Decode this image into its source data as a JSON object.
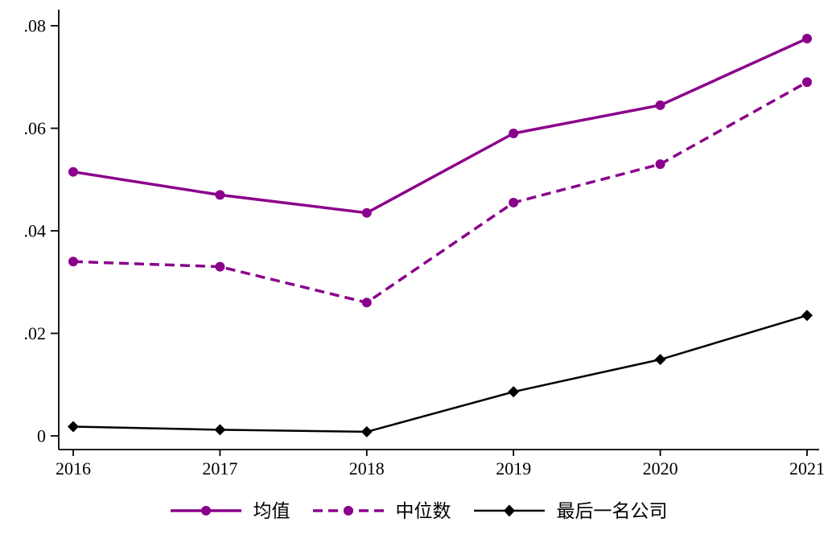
{
  "chart_data": {
    "type": "line",
    "title": "",
    "xlabel": "",
    "ylabel": "",
    "x": [
      2016,
      2017,
      2018,
      2019,
      2020,
      2021
    ],
    "xtick_labels": [
      "2016",
      "2017",
      "2018",
      "2019",
      "2020",
      "2021"
    ],
    "ylim": [
      0,
      0.08
    ],
    "yticks": [
      0,
      0.02,
      0.04,
      0.06,
      0.08
    ],
    "ytick_labels": [
      "0",
      ".02",
      ".04",
      ".06",
      ".08"
    ],
    "grid": "off",
    "legend_position": "bottom-center",
    "axis_color": "#000000",
    "background_color": "#ffffff",
    "series": [
      {
        "key": "mean",
        "name": "均值",
        "color": "#8B008B",
        "line_style": "solid",
        "marker": "circle",
        "values": [
          0.0515,
          0.047,
          0.0435,
          0.059,
          0.0645,
          0.0775
        ]
      },
      {
        "key": "median",
        "name": "中位数",
        "color": "#8B008B",
        "line_style": "dashed",
        "marker": "circle",
        "values": [
          0.034,
          0.033,
          0.026,
          0.0455,
          0.053,
          0.069
        ]
      },
      {
        "key": "last-place-firm",
        "name": "最后一名公司",
        "color": "#000000",
        "line_style": "solid",
        "marker": "diamond",
        "values": [
          0.0018,
          0.0012,
          0.0008,
          0.0086,
          0.0149,
          0.0235
        ]
      }
    ]
  }
}
